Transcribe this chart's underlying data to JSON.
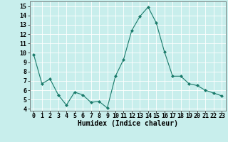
{
  "x": [
    0,
    1,
    2,
    3,
    4,
    5,
    6,
    7,
    8,
    9,
    10,
    11,
    12,
    13,
    14,
    15,
    16,
    17,
    18,
    19,
    20,
    21,
    22,
    23
  ],
  "y": [
    9.8,
    6.7,
    7.2,
    5.5,
    4.4,
    5.8,
    5.5,
    4.7,
    4.8,
    4.1,
    7.5,
    9.3,
    12.4,
    13.9,
    14.9,
    13.2,
    10.1,
    7.5,
    7.5,
    6.7,
    6.5,
    6.0,
    5.7,
    5.4
  ],
  "line_color": "#1a7a6a",
  "marker": "D",
  "marker_size": 2,
  "bg_color": "#c8eeec",
  "grid_color": "#ffffff",
  "xlabel": "Humidex (Indice chaleur)",
  "xlabel_fontsize": 7,
  "xtick_labels": [
    "0",
    "1",
    "2",
    "3",
    "4",
    "5",
    "6",
    "7",
    "8",
    "9",
    "10",
    "11",
    "12",
    "13",
    "14",
    "15",
    "16",
    "17",
    "18",
    "19",
    "20",
    "21",
    "22",
    "23"
  ],
  "ytick_labels": [
    "4",
    "5",
    "6",
    "7",
    "8",
    "9",
    "10",
    "11",
    "12",
    "13",
    "14",
    "15"
  ],
  "ylim": [
    3.8,
    15.5
  ],
  "xlim": [
    -0.5,
    23.5
  ],
  "tick_fontsize": 6
}
